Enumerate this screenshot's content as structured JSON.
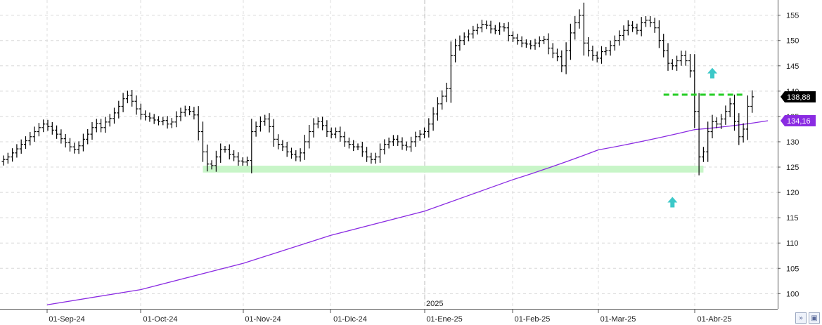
{
  "chart_data": {
    "type": "ohlc",
    "y_axis": {
      "side": "right",
      "range": [
        97,
        158
      ],
      "ticks": [
        100,
        105,
        110,
        115,
        120,
        125,
        130,
        135,
        140,
        145,
        150,
        155
      ]
    },
    "x_axis": {
      "labels": [
        "01-Sep-24",
        "01-Oct-24",
        "01-Nov-24",
        "01-Dic-24",
        "01-Ene-25",
        "01-Feb-25",
        "01-Mar-25",
        "01-Abr-25"
      ],
      "year_marker": "2025"
    },
    "grid": true,
    "colors": {
      "bars": "#000000",
      "moving_average": "#8a2be2",
      "support_zone": "#c8f5c8",
      "resistance_line": "#22cc22",
      "arrows": "#3cc8c8",
      "last_price_badge": "#000000",
      "ma_badge": "#8a2be2"
    },
    "last_price_label": "138,88",
    "moving_average_label": "134,16",
    "series": [
      {
        "kind": "ohlc",
        "closes": [
          126.5,
          127.0,
          127.8,
          128.6,
          129.5,
          130.2,
          131.0,
          132.0,
          132.8,
          133.5,
          133.0,
          132.3,
          131.5,
          130.6,
          129.8,
          129.0,
          128.5,
          129.2,
          130.5,
          131.5,
          132.8,
          133.6,
          132.8,
          133.9,
          134.6,
          135.7,
          137.0,
          138.5,
          139.2,
          138.0,
          136.5,
          135.4,
          135.0,
          134.7,
          134.3,
          134.0,
          134.2,
          133.5,
          133.9,
          135.0,
          135.8,
          136.3,
          136.0,
          135.3,
          132.0,
          128.0,
          125.6,
          125.3,
          127.0,
          128.5,
          128.5,
          127.5,
          127.0,
          126.2,
          126.0,
          126.3,
          132.0,
          133.0,
          134.0,
          134.5,
          133.0,
          130.5,
          129.5,
          129.0,
          128.0,
          127.5,
          127.0,
          127.8,
          130.0,
          132.0,
          133.5,
          134.0,
          133.2,
          132.0,
          131.5,
          132.0,
          131.0,
          130.0,
          129.5,
          129.0,
          129.0,
          128.0,
          127.0,
          126.5,
          127.0,
          128.5,
          129.5,
          130.0,
          130.5,
          130.0,
          129.3,
          129.0,
          130.0,
          131.0,
          131.5,
          132.0,
          133.5,
          135.5,
          137.5,
          139.0,
          140.5,
          147.0,
          149.0,
          150.0,
          150.7,
          151.3,
          152.0,
          152.5,
          153.2,
          153.0,
          152.3,
          152.0,
          152.7,
          152.5,
          151.0,
          150.5,
          150.0,
          149.5,
          149.3,
          149.0,
          149.5,
          150.0,
          150.2,
          148.5,
          147.5,
          146.8,
          145.0,
          148.0,
          151.5,
          153.5,
          155.0,
          149.5,
          148.0,
          147.0,
          146.5,
          147.8,
          148.0,
          149.0,
          150.0,
          151.0,
          152.0,
          153.0,
          152.5,
          152.0,
          153.5,
          154.0,
          153.5,
          152.5,
          150.0,
          148.0,
          145.5,
          145.0,
          146.0,
          147.0,
          146.0,
          144.0,
          136.0,
          127.0,
          128.0,
          132.0,
          134.0,
          133.5,
          134.5,
          136.0,
          137.5,
          134.0,
          131.0,
          132.5,
          137.0,
          138.88
        ]
      },
      {
        "kind": "moving_average",
        "points": [
          [
            "01-Sep-24",
            97.8
          ],
          [
            "01-Oct-24",
            100.8
          ],
          [
            "01-Nov-24",
            106.0
          ],
          [
            "01-Dic-24",
            111.5
          ],
          [
            "01-Ene-25",
            116.3
          ],
          [
            "01-Feb-25",
            122.5
          ],
          [
            "01-Mar-25",
            128.4
          ],
          [
            "01-Abr-25",
            132.4
          ],
          [
            "end",
            134.16
          ]
        ]
      }
    ],
    "annotations": [
      {
        "kind": "support-zone",
        "y": [
          124.2,
          125.0
        ],
        "from_bar": 45,
        "to_bar": 158
      },
      {
        "kind": "resistance-line",
        "y": 139.3,
        "from_bar": 149,
        "to_bar": 167
      },
      {
        "kind": "up-arrow",
        "bar": 151,
        "y": 118.0
      },
      {
        "kind": "up-arrow",
        "bar": 160,
        "y": 143.5
      }
    ]
  },
  "controls": {
    "zoom_icon": "double-chevron-icon",
    "save_icon": "floppy-disk-icon"
  }
}
